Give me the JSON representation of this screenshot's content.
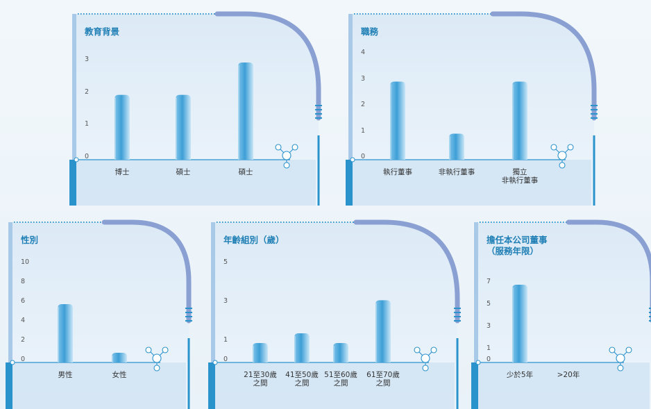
{
  "chart_data": [
    {
      "type": "bar",
      "title": "教育背景",
      "categories": [
        "博士",
        "碩士",
        "碩士"
      ],
      "values": [
        2,
        2,
        3
      ],
      "ylim": [
        0,
        3
      ],
      "yticks": [
        "0",
        "1",
        "2",
        "3"
      ],
      "grid": false
    },
    {
      "type": "bar",
      "title": "職務",
      "categories": [
        "執行董事",
        "非執行董事",
        "獨立\n非執行董事"
      ],
      "values": [
        3,
        1,
        3
      ],
      "ylim": [
        0,
        4
      ],
      "yticks": [
        "0",
        "1",
        "2",
        "3",
        "4"
      ],
      "grid": false
    },
    {
      "type": "bar",
      "title": "性別",
      "categories": [
        "男性",
        "女性"
      ],
      "values": [
        6,
        1
      ],
      "ylim": [
        0,
        10
      ],
      "yticks": [
        "0",
        "2",
        "4",
        "6",
        "8",
        "10"
      ],
      "grid": false
    },
    {
      "type": "bar",
      "title": "年齡組別（歲）",
      "categories": [
        "21至30歲\n之間",
        "41至50歲\n之間",
        "51至60歲\n之間",
        "61至70歲\n之間"
      ],
      "values": [
        1,
        1.5,
        1,
        3.2
      ],
      "ylim": [
        0,
        5
      ],
      "yticks": [
        "0",
        "1",
        "3",
        "5"
      ],
      "grid": false
    },
    {
      "type": "bar",
      "title": "擔任本公司董事\n（服務年限）",
      "categories": [
        "少於5年",
        ">20年"
      ],
      "values": [
        7,
        0
      ],
      "ylim": [
        0,
        7
      ],
      "yticks": [
        "0",
        "1",
        "3",
        "5",
        "7"
      ],
      "grid": false
    }
  ],
  "colors": {
    "title": "#1f7fb5",
    "bar": "#4aa3d6",
    "frame": "#8aa0d2",
    "accent": "#2a93cc"
  }
}
